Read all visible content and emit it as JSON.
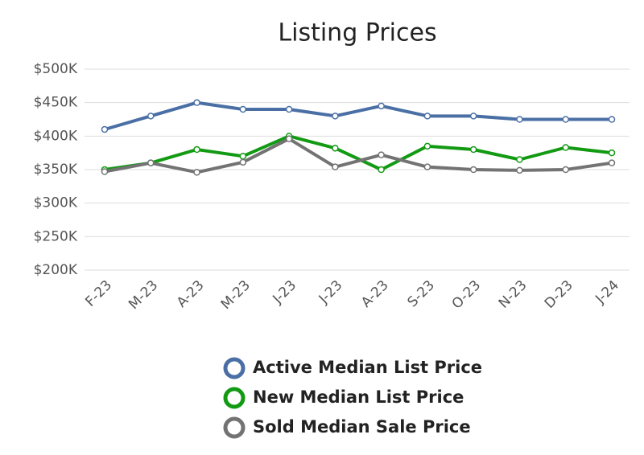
{
  "chart_data": {
    "type": "line",
    "title": "Listing Prices",
    "categories": [
      "F-23",
      "M-23",
      "A-23",
      "M-23",
      "J-23",
      "J-23",
      "A-23",
      "S-23",
      "O-23",
      "N-23",
      "D-23",
      "J-24"
    ],
    "series": [
      {
        "name": "Active Median List Price",
        "color": "#4a6fa5",
        "values": [
          410000,
          430000,
          450000,
          440000,
          440000,
          430000,
          445000,
          430000,
          430000,
          425000,
          425000,
          425000
        ]
      },
      {
        "name": "New Median List Price",
        "color": "#139a13",
        "values": [
          350000,
          360000,
          380000,
          370000,
          400000,
          382000,
          350000,
          385000,
          380000,
          365000,
          383000,
          375000
        ]
      },
      {
        "name": "Sold Median Sale Price",
        "color": "#737373",
        "values": [
          347000,
          360000,
          346000,
          361000,
          396000,
          354000,
          372000,
          354000,
          350000,
          349000,
          350000,
          360000
        ]
      }
    ],
    "ylim": [
      200000,
      500000
    ],
    "yticks": [
      {
        "value": 200000,
        "label": "$200K"
      },
      {
        "value": 250000,
        "label": "$250K"
      },
      {
        "value": 300000,
        "label": "$300K"
      },
      {
        "value": 350000,
        "label": "$350K"
      },
      {
        "value": 400000,
        "label": "$400K"
      },
      {
        "value": 450000,
        "label": "$450K"
      },
      {
        "value": 500000,
        "label": "$500K"
      }
    ],
    "grid": true
  }
}
